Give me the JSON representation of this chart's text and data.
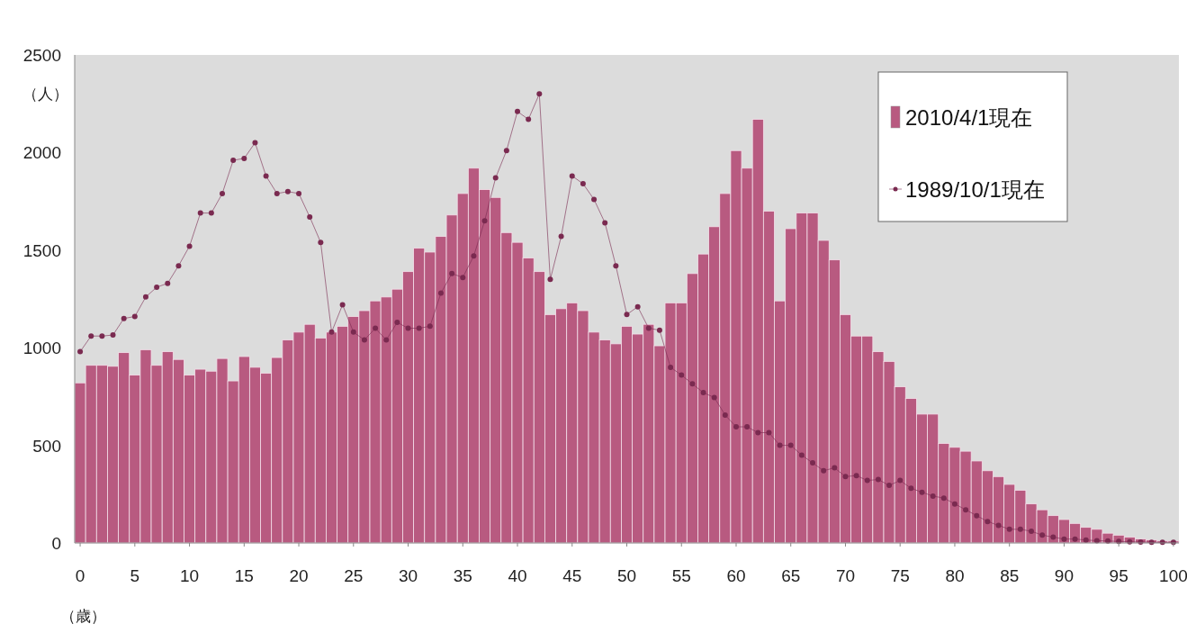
{
  "chart_data": {
    "type": "bar",
    "ylabel": "（人）",
    "xlabel": "（歳）",
    "x": [
      0,
      1,
      2,
      3,
      4,
      5,
      6,
      7,
      8,
      9,
      10,
      11,
      12,
      13,
      14,
      15,
      16,
      17,
      18,
      19,
      20,
      21,
      22,
      23,
      24,
      25,
      26,
      27,
      28,
      29,
      30,
      31,
      32,
      33,
      34,
      35,
      36,
      37,
      38,
      39,
      40,
      41,
      42,
      43,
      44,
      45,
      46,
      47,
      48,
      49,
      50,
      51,
      52,
      53,
      54,
      55,
      56,
      57,
      58,
      59,
      60,
      61,
      62,
      63,
      64,
      65,
      66,
      67,
      68,
      69,
      70,
      71,
      72,
      73,
      74,
      75,
      76,
      77,
      78,
      79,
      80,
      81,
      82,
      83,
      84,
      85,
      86,
      87,
      88,
      89,
      90,
      91,
      92,
      93,
      94,
      95,
      96,
      97,
      98,
      99,
      100
    ],
    "xlim": [
      -0.5,
      100.5
    ],
    "xticks": [
      0,
      5,
      10,
      15,
      20,
      25,
      30,
      35,
      40,
      45,
      50,
      55,
      60,
      65,
      70,
      75,
      80,
      85,
      90,
      95,
      100
    ],
    "ylim": [
      0,
      2500
    ],
    "yticks": [
      0,
      500,
      1000,
      1500,
      2000,
      2500
    ],
    "grid": false,
    "legend": "top right",
    "marker": "circle",
    "series": [
      {
        "name": "2010/4/1現在",
        "color": "#b85a80",
        "values": [
          820,
          910,
          910,
          905,
          975,
          860,
          990,
          910,
          980,
          940,
          860,
          890,
          880,
          945,
          830,
          955,
          900,
          870,
          950,
          1040,
          1080,
          1120,
          1050,
          1080,
          1110,
          1160,
          1190,
          1240,
          1260,
          1300,
          1390,
          1510,
          1490,
          1570,
          1680,
          1790,
          1920,
          1810,
          1770,
          1590,
          1540,
          1460,
          1390,
          1170,
          1200,
          1230,
          1190,
          1080,
          1040,
          1020,
          1110,
          1070,
          1120,
          1010,
          1230,
          1230,
          1380,
          1480,
          1620,
          1790,
          2010,
          1920,
          2170,
          1700,
          1240,
          1610,
          1690,
          1690,
          1550,
          1450,
          1170,
          1060,
          1060,
          980,
          930,
          800,
          740,
          660,
          660,
          510,
          490,
          470,
          420,
          370,
          340,
          300,
          270,
          200,
          170,
          140,
          120,
          100,
          80,
          70,
          50,
          40,
          30,
          20,
          15,
          10,
          10
        ]
      },
      {
        "name": "1989/10/1現在",
        "type": "line",
        "color": "#7a2a50",
        "values": [
          980,
          1060,
          1060,
          1065,
          1150,
          1160,
          1260,
          1310,
          1330,
          1420,
          1520,
          1690,
          1690,
          1790,
          1960,
          1970,
          2050,
          1880,
          1790,
          1800,
          1790,
          1670,
          1540,
          1080,
          1220,
          1080,
          1040,
          1100,
          1040,
          1130,
          1100,
          1100,
          1110,
          1280,
          1380,
          1360,
          1470,
          1650,
          1870,
          2010,
          2210,
          2170,
          2300,
          1350,
          1570,
          1880,
          1840,
          1760,
          1640,
          1420,
          1170,
          1210,
          1100,
          1090,
          900,
          860,
          815,
          770,
          745,
          655,
          595,
          595,
          565,
          565,
          500,
          500,
          450,
          410,
          370,
          385,
          340,
          345,
          320,
          325,
          295,
          320,
          280,
          260,
          240,
          230,
          200,
          170,
          140,
          110,
          90,
          70,
          70,
          60,
          40,
          30,
          20,
          20,
          15,
          12,
          10,
          8,
          6,
          5,
          4,
          3,
          3
        ]
      }
    ]
  }
}
